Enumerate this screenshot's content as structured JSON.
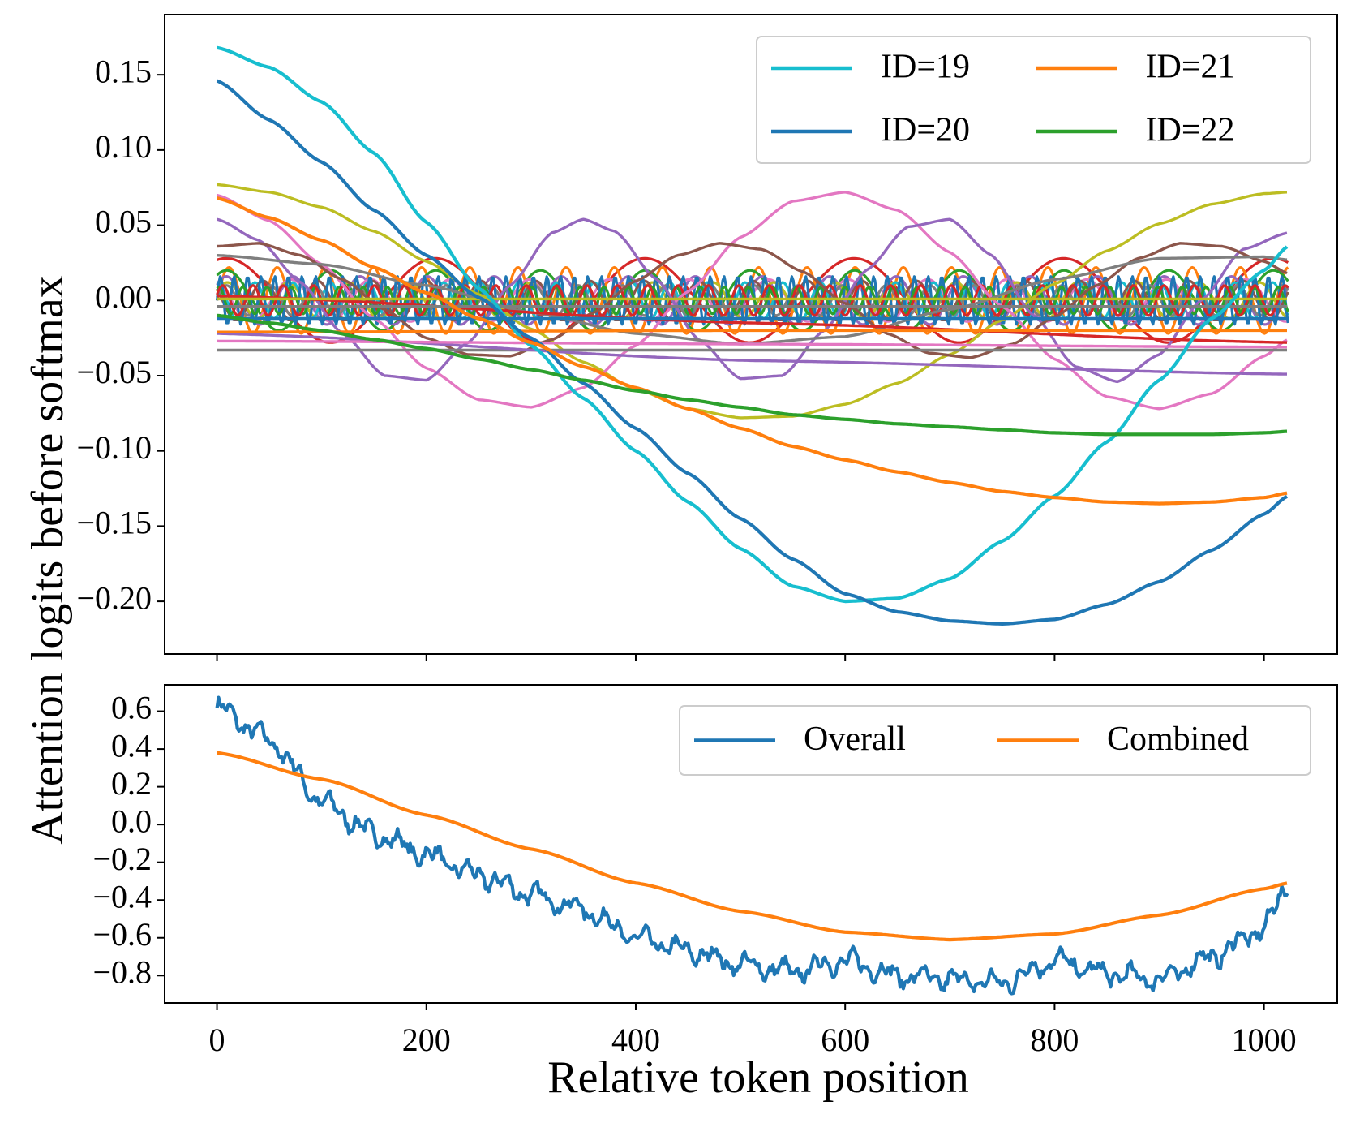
{
  "chart_data": [
    {
      "type": "line",
      "panel": "top",
      "ylabel": "Attention logits before softmax",
      "xlim": [
        -50,
        1070
      ],
      "ylim": [
        -0.235,
        0.19
      ],
      "yticks": [
        0.15,
        0.1,
        0.05,
        0.0,
        -0.05,
        -0.1,
        -0.15,
        -0.2
      ],
      "ytick_labels": [
        "0.15",
        "0.10",
        "0.05",
        "0.00",
        "−0.05",
        "−0.10",
        "−0.15",
        "−0.20"
      ],
      "xticks": [
        0,
        200,
        400,
        600,
        800,
        1000
      ],
      "legend": {
        "position": "top-right",
        "ncol": 2
      },
      "series": [
        {
          "name": "ID=19",
          "color": "#17becf",
          "in_legend": true,
          "x": [
            0,
            50,
            100,
            150,
            200,
            250,
            300,
            350,
            400,
            450,
            500,
            550,
            600,
            650,
            700,
            750,
            800,
            850,
            900,
            950,
            1000,
            1023
          ],
          "values": [
            0.168,
            0.155,
            0.132,
            0.098,
            0.052,
            0.008,
            -0.03,
            -0.065,
            -0.1,
            -0.134,
            -0.165,
            -0.19,
            -0.2,
            -0.198,
            -0.185,
            -0.16,
            -0.13,
            -0.094,
            -0.053,
            -0.012,
            0.02,
            0.036
          ]
        },
        {
          "name": "ID=20",
          "color": "#1f77b4",
          "in_legend": true,
          "x": [
            0,
            50,
            100,
            150,
            200,
            250,
            300,
            350,
            400,
            450,
            500,
            550,
            600,
            650,
            700,
            750,
            800,
            850,
            900,
            950,
            1000,
            1023
          ],
          "values": [
            0.146,
            0.12,
            0.092,
            0.06,
            0.03,
            0.002,
            -0.025,
            -0.055,
            -0.085,
            -0.115,
            -0.145,
            -0.172,
            -0.195,
            -0.207,
            -0.213,
            -0.215,
            -0.212,
            -0.202,
            -0.187,
            -0.166,
            -0.142,
            -0.13
          ]
        },
        {
          "name": "ID=21",
          "color": "#ff7f0e",
          "in_legend": true,
          "x": [
            0,
            50,
            100,
            150,
            200,
            250,
            300,
            350,
            400,
            450,
            500,
            550,
            600,
            650,
            700,
            750,
            800,
            850,
            900,
            950,
            1000,
            1023
          ],
          "values": [
            0.068,
            0.055,
            0.04,
            0.022,
            0.005,
            -0.012,
            -0.028,
            -0.044,
            -0.058,
            -0.072,
            -0.085,
            -0.097,
            -0.106,
            -0.114,
            -0.121,
            -0.127,
            -0.131,
            -0.134,
            -0.135,
            -0.134,
            -0.131,
            -0.128
          ]
        },
        {
          "name": "ID=22",
          "color": "#2ca02c",
          "in_legend": true,
          "x": [
            0,
            50,
            100,
            150,
            200,
            250,
            300,
            350,
            400,
            450,
            500,
            550,
            600,
            650,
            700,
            750,
            800,
            850,
            900,
            950,
            1000,
            1023
          ],
          "values": [
            -0.01,
            -0.015,
            -0.02,
            -0.026,
            -0.032,
            -0.039,
            -0.046,
            -0.053,
            -0.06,
            -0.066,
            -0.071,
            -0.076,
            -0.079,
            -0.082,
            -0.084,
            -0.086,
            -0.088,
            -0.089,
            -0.089,
            -0.089,
            -0.088,
            -0.087
          ]
        },
        {
          "name": "olive",
          "color": "#bcbd22",
          "in_legend": false,
          "x": [
            0,
            50,
            100,
            150,
            200,
            250,
            300,
            350,
            400,
            450,
            500,
            550,
            600,
            650,
            700,
            750,
            800,
            850,
            900,
            950,
            1000,
            1023
          ],
          "values": [
            0.077,
            0.072,
            0.062,
            0.046,
            0.026,
            0.004,
            -0.019,
            -0.041,
            -0.059,
            -0.072,
            -0.078,
            -0.077,
            -0.069,
            -0.055,
            -0.036,
            -0.013,
            0.011,
            0.033,
            0.051,
            0.064,
            0.071,
            0.072
          ]
        },
        {
          "name": "pink",
          "color": "#e377c2",
          "in_legend": false,
          "x": [
            0,
            50,
            100,
            150,
            200,
            250,
            300,
            350,
            400,
            450,
            500,
            550,
            600,
            650,
            700,
            750,
            800,
            850,
            900,
            950,
            1000,
            1023
          ],
          "values": [
            0.07,
            0.053,
            0.024,
            -0.012,
            -0.045,
            -0.066,
            -0.071,
            -0.058,
            -0.03,
            0.006,
            0.042,
            0.066,
            0.072,
            0.06,
            0.032,
            -0.004,
            -0.039,
            -0.064,
            -0.072,
            -0.062,
            -0.037,
            -0.026
          ]
        },
        {
          "name": "purple",
          "color": "#9467bd",
          "in_legend": false,
          "x": [
            0,
            40,
            80,
            120,
            160,
            200,
            240,
            280,
            320,
            350,
            380,
            420,
            460,
            500,
            540,
            580,
            620,
            660,
            700,
            740,
            780,
            820,
            860,
            900,
            940,
            980,
            1023
          ],
          "values": [
            0.054,
            0.04,
            0.012,
            -0.022,
            -0.05,
            -0.053,
            -0.028,
            0.01,
            0.045,
            0.054,
            0.046,
            0.014,
            -0.026,
            -0.052,
            -0.05,
            -0.02,
            0.02,
            0.049,
            0.054,
            0.03,
            -0.01,
            -0.044,
            -0.054,
            -0.036,
            0.0,
            0.034,
            0.045
          ]
        },
        {
          "name": "brown",
          "color": "#8c564b",
          "in_legend": false,
          "x": [
            0,
            40,
            80,
            120,
            160,
            200,
            240,
            280,
            320,
            360,
            400,
            440,
            480,
            520,
            560,
            600,
            640,
            680,
            720,
            760,
            800,
            840,
            880,
            920,
            960,
            1000,
            1023
          ],
          "values": [
            0.036,
            0.038,
            0.03,
            0.014,
            -0.006,
            -0.025,
            -0.036,
            -0.037,
            -0.026,
            -0.008,
            0.013,
            0.03,
            0.038,
            0.034,
            0.019,
            -0.002,
            -0.022,
            -0.035,
            -0.038,
            -0.029,
            -0.011,
            0.01,
            0.028,
            0.038,
            0.036,
            0.026,
            0.018
          ]
        },
        {
          "name": "gray",
          "color": "#7f7f7f",
          "in_legend": false,
          "x": [
            0,
            100,
            200,
            300,
            400,
            500,
            600,
            700,
            800,
            900,
            1000,
            1023
          ],
          "values": [
            0.03,
            0.024,
            0.01,
            -0.008,
            -0.022,
            -0.029,
            -0.024,
            -0.006,
            0.014,
            0.028,
            0.029,
            0.027
          ]
        },
        {
          "name": "gray-flat",
          "color": "#7f7f7f",
          "in_legend": false,
          "x": [
            0,
            512,
            1023
          ],
          "values": [
            -0.033,
            -0.033,
            -0.033
          ]
        },
        {
          "name": "purple-drift",
          "color": "#9467bd",
          "in_legend": false,
          "x": [
            0,
            512,
            1023
          ],
          "values": [
            -0.022,
            -0.04,
            -0.049
          ]
        },
        {
          "name": "red-drift",
          "color": "#d62728",
          "in_legend": false,
          "x": [
            0,
            512,
            1023
          ],
          "values": [
            0.003,
            -0.015,
            -0.028
          ]
        },
        {
          "name": "pink-flat",
          "color": "#e377c2",
          "in_legend": false,
          "x": [
            0,
            512,
            1023
          ],
          "values": [
            -0.027,
            -0.029,
            -0.031
          ]
        },
        {
          "name": "orange-flat",
          "color": "#ff7f0e",
          "in_legend": false,
          "x": [
            0,
            512,
            1023
          ],
          "values": [
            -0.021,
            -0.02,
            -0.02
          ]
        },
        {
          "name": "gray-zero",
          "color": "#7f7f7f",
          "in_legend": false,
          "x": [
            0,
            512,
            1023
          ],
          "values": [
            -0.004,
            -0.004,
            -0.004
          ]
        },
        {
          "name": "olive-zero",
          "color": "#bcbd22",
          "in_legend": false,
          "x": [
            0,
            512,
            1023
          ],
          "values": [
            0.001,
            0.001,
            0.001
          ]
        },
        {
          "name": "blue-flat",
          "color": "#1f77b4",
          "in_legend": false,
          "x": [
            0,
            512,
            1023
          ],
          "values": [
            -0.012,
            -0.012,
            -0.012
          ]
        }
      ],
      "oscillating_series": [
        {
          "color": "#d62728",
          "amplitude": 0.028,
          "period": 200,
          "phase": 1.3,
          "offset": 0.0
        },
        {
          "color": "#ff7f0e",
          "amplitude": 0.022,
          "period": 46,
          "phase": 0.0,
          "offset": 0.0
        },
        {
          "color": "#2ca02c",
          "amplitude": 0.02,
          "period": 100,
          "phase": 1.0,
          "offset": 0.0
        },
        {
          "color": "#9467bd",
          "amplitude": 0.016,
          "period": 64,
          "phase": 0.7,
          "offset": 0.0
        },
        {
          "color": "#e377c2",
          "amplitude": 0.014,
          "period": 76,
          "phase": 2.0,
          "offset": 0.0
        },
        {
          "color": "#bcbd22",
          "amplitude": 0.012,
          "period": 58,
          "phase": 0.5,
          "offset": 0.0
        },
        {
          "color": "#17becf",
          "amplitude": 0.012,
          "period": 36,
          "phase": 1.5,
          "offset": 0.0
        },
        {
          "color": "#8c564b",
          "amplitude": 0.013,
          "period": 52,
          "phase": 2.5,
          "offset": 0.0
        },
        {
          "color": "#7f7f7f",
          "amplitude": 0.01,
          "period": 42,
          "phase": 0.2,
          "offset": 0.0
        },
        {
          "color": "#1f77b4",
          "amplitude": 0.016,
          "period": 13,
          "phase": 0.0,
          "offset": 0.0
        },
        {
          "color": "#2ca02c",
          "amplitude": 0.009,
          "period": 23,
          "phase": 1.1,
          "offset": 0.0
        },
        {
          "color": "#d62728",
          "amplitude": 0.01,
          "period": 29,
          "phase": 0.4,
          "offset": 0.0
        }
      ]
    },
    {
      "type": "line",
      "panel": "bottom",
      "xlabel": "Relative token position",
      "xlim": [
        -50,
        1070
      ],
      "ylim": [
        -0.945,
        0.74
      ],
      "yticks": [
        0.6,
        0.4,
        0.2,
        0.0,
        -0.2,
        -0.4,
        -0.6,
        -0.8
      ],
      "ytick_labels": [
        "0.6",
        "0.4",
        "0.2",
        "0.0",
        "−0.2",
        "−0.4",
        "−0.6",
        "−0.8"
      ],
      "xticks": [
        0,
        200,
        400,
        600,
        800,
        1000
      ],
      "xtick_labels": [
        "0",
        "200",
        "400",
        "600",
        "800",
        "1000"
      ],
      "legend": {
        "position": "top-right",
        "ncol": 2
      },
      "series": [
        {
          "name": "Overall",
          "color": "#1f77b4",
          "noisy": true,
          "x": [
            0,
            50,
            100,
            150,
            200,
            250,
            300,
            350,
            400,
            450,
            500,
            550,
            600,
            650,
            700,
            750,
            800,
            850,
            900,
            950,
            1000,
            1023
          ],
          "values": [
            0.62,
            0.45,
            0.12,
            -0.05,
            -0.16,
            -0.27,
            -0.37,
            -0.45,
            -0.6,
            -0.67,
            -0.74,
            -0.78,
            -0.72,
            -0.8,
            -0.82,
            -0.84,
            -0.72,
            -0.79,
            -0.82,
            -0.7,
            -0.55,
            -0.32
          ]
        },
        {
          "name": "Combined",
          "color": "#ff7f0e",
          "noisy": false,
          "x": [
            0,
            100,
            200,
            300,
            400,
            500,
            600,
            700,
            800,
            900,
            1000,
            1023
          ],
          "values": [
            0.38,
            0.24,
            0.05,
            -0.13,
            -0.31,
            -0.46,
            -0.57,
            -0.61,
            -0.58,
            -0.48,
            -0.34,
            -0.31
          ]
        }
      ]
    }
  ]
}
